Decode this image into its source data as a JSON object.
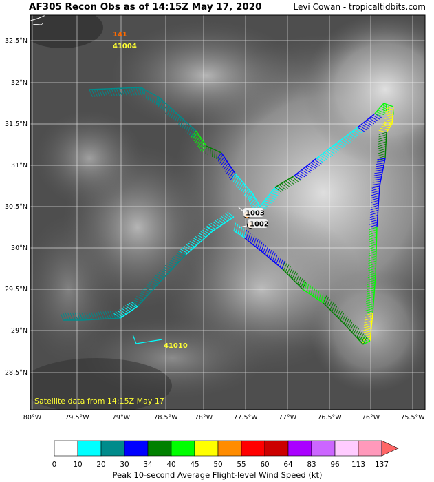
{
  "header": {
    "title": "AF305 Recon Obs as of 14:15Z May 17, 2020",
    "credit": "Levi Cowan - tropicaltidbits.com"
  },
  "map": {
    "lon_ticks": [
      "80°W",
      "79.5°W",
      "79°W",
      "78.5°W",
      "78°W",
      "77.5°W",
      "77°W",
      "76.5°W",
      "76°W",
      "75.5°W"
    ],
    "lat_ticks": [
      "32.5°N",
      "32°N",
      "31.5°N",
      "31°N",
      "30.5°N",
      "30°N",
      "29.5°N",
      "29°N",
      "28.5°N"
    ],
    "satellite_note": "Satellite data from 14:15Z May 17",
    "buoys": [
      {
        "id": "buoy-41004-value",
        "text": "141",
        "color": "#ff6a00"
      },
      {
        "id": "buoy-41004-id",
        "text": "41004",
        "color": "#ffff33"
      },
      {
        "id": "buoy-41010-id",
        "text": "41010",
        "color": "#ffff33"
      }
    ],
    "dropsondes": [
      {
        "pressure": "1003"
      },
      {
        "pressure": "1002"
      }
    ]
  },
  "colorbar": {
    "label": "Peak 10-second Average Flight-level Wind Speed (kt)",
    "ticks": [
      "0",
      "10",
      "20",
      "30",
      "34",
      "40",
      "45",
      "50",
      "55",
      "60",
      "64",
      "83",
      "96",
      "113",
      "137"
    ],
    "colors": [
      "#ffffff",
      "#00ffff",
      "#008b8b",
      "#0000ff",
      "#008000",
      "#00ff00",
      "#ffff00",
      "#ff8c00",
      "#ff0000",
      "#cc0000",
      "#aa00ff",
      "#cc66ff",
      "#ffccff",
      "#ff99bb",
      "#ff6666"
    ]
  }
}
